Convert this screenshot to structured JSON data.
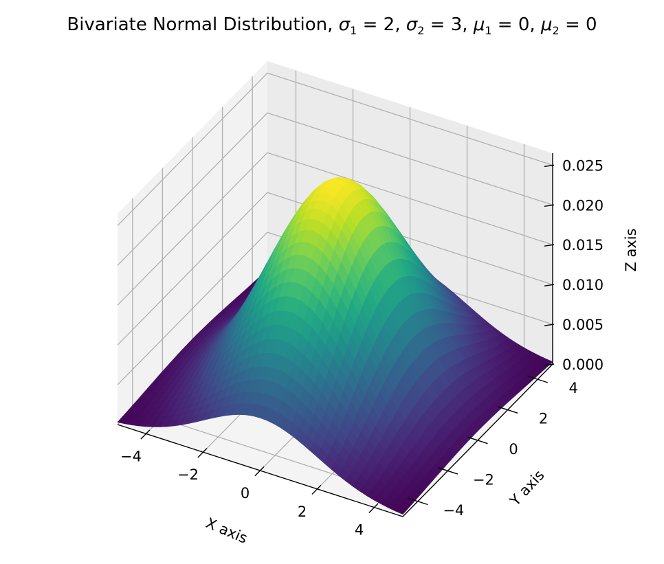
{
  "chart_data": {
    "type": "surface3d",
    "title": "Bivariate Normal Distribution, σ₁ = 2, σ₂ = 3, μ₁ = 0, μ₂ = 0",
    "title_parts": {
      "prefix": "Bivariate Normal Distribution, ",
      "sigma1_value": "2",
      "sigma2_value": "3",
      "mu1_value": "0",
      "mu2_value": "0"
    },
    "parameters": {
      "sigma1": 2,
      "sigma2": 3,
      "mu1": 0,
      "mu2": 0
    },
    "function": "z = exp(-(x²/(2σ₁²) + y²/(2σ₂²))) / (2π σ₁ σ₂)",
    "xlabel": "X axis",
    "ylabel": "Y axis",
    "zlabel": "Z axis",
    "xlim": [
      -5,
      5
    ],
    "ylim": [
      -5,
      5
    ],
    "zlim": [
      0,
      0.0265
    ],
    "xticks": [
      "−4",
      "−2",
      "0",
      "2",
      "4"
    ],
    "yticks": [
      "−4",
      "−2",
      "0",
      "2",
      "4"
    ],
    "zticks": [
      "0.000",
      "0.005",
      "0.010",
      "0.015",
      "0.020",
      "0.025"
    ],
    "colormap": "viridis",
    "grid": true,
    "z_peak": 0.0265
  },
  "colors": {
    "pane_left": "#f2f2f2",
    "pane_back": "#ebebeb",
    "pane_floor": "#f4f4f4",
    "grid": "#b0b0b0",
    "axis": "#000000"
  }
}
